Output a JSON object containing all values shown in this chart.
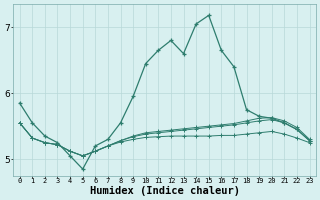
{
  "xlabel": "Humidex (Indice chaleur)",
  "x": [
    0,
    1,
    2,
    3,
    4,
    5,
    6,
    7,
    8,
    9,
    10,
    11,
    12,
    13,
    14,
    15,
    16,
    17,
    18,
    19,
    20,
    21,
    22,
    23
  ],
  "line1": [
    5.85,
    5.55,
    5.35,
    5.25,
    5.05,
    4.85,
    5.2,
    5.3,
    5.55,
    5.95,
    6.45,
    6.65,
    6.8,
    6.6,
    7.05,
    7.18,
    6.65,
    6.4,
    5.75,
    5.65,
    5.62,
    5.55,
    5.45,
    5.28
  ],
  "line2": [
    5.55,
    5.32,
    5.25,
    5.22,
    5.12,
    5.05,
    5.12,
    5.2,
    5.28,
    5.35,
    5.4,
    5.42,
    5.44,
    5.46,
    5.48,
    5.5,
    5.52,
    5.54,
    5.58,
    5.62,
    5.63,
    5.58,
    5.48,
    5.3
  ],
  "line3": [
    5.55,
    5.32,
    5.25,
    5.22,
    5.12,
    5.05,
    5.12,
    5.2,
    5.28,
    5.34,
    5.38,
    5.4,
    5.42,
    5.44,
    5.46,
    5.48,
    5.5,
    5.52,
    5.55,
    5.58,
    5.6,
    5.55,
    5.45,
    5.28
  ],
  "line4": [
    5.55,
    5.32,
    5.25,
    5.22,
    5.12,
    5.05,
    5.12,
    5.2,
    5.26,
    5.3,
    5.33,
    5.34,
    5.35,
    5.35,
    5.35,
    5.35,
    5.36,
    5.36,
    5.38,
    5.4,
    5.42,
    5.38,
    5.32,
    5.25
  ],
  "line_color": "#2e7d6e",
  "bg_color": "#d8f0f0",
  "grid_color": "#b8d8d8",
  "ylim": [
    4.75,
    7.35
  ],
  "yticks": [
    5,
    6,
    7
  ],
  "xlabel_fontsize": 7.5
}
